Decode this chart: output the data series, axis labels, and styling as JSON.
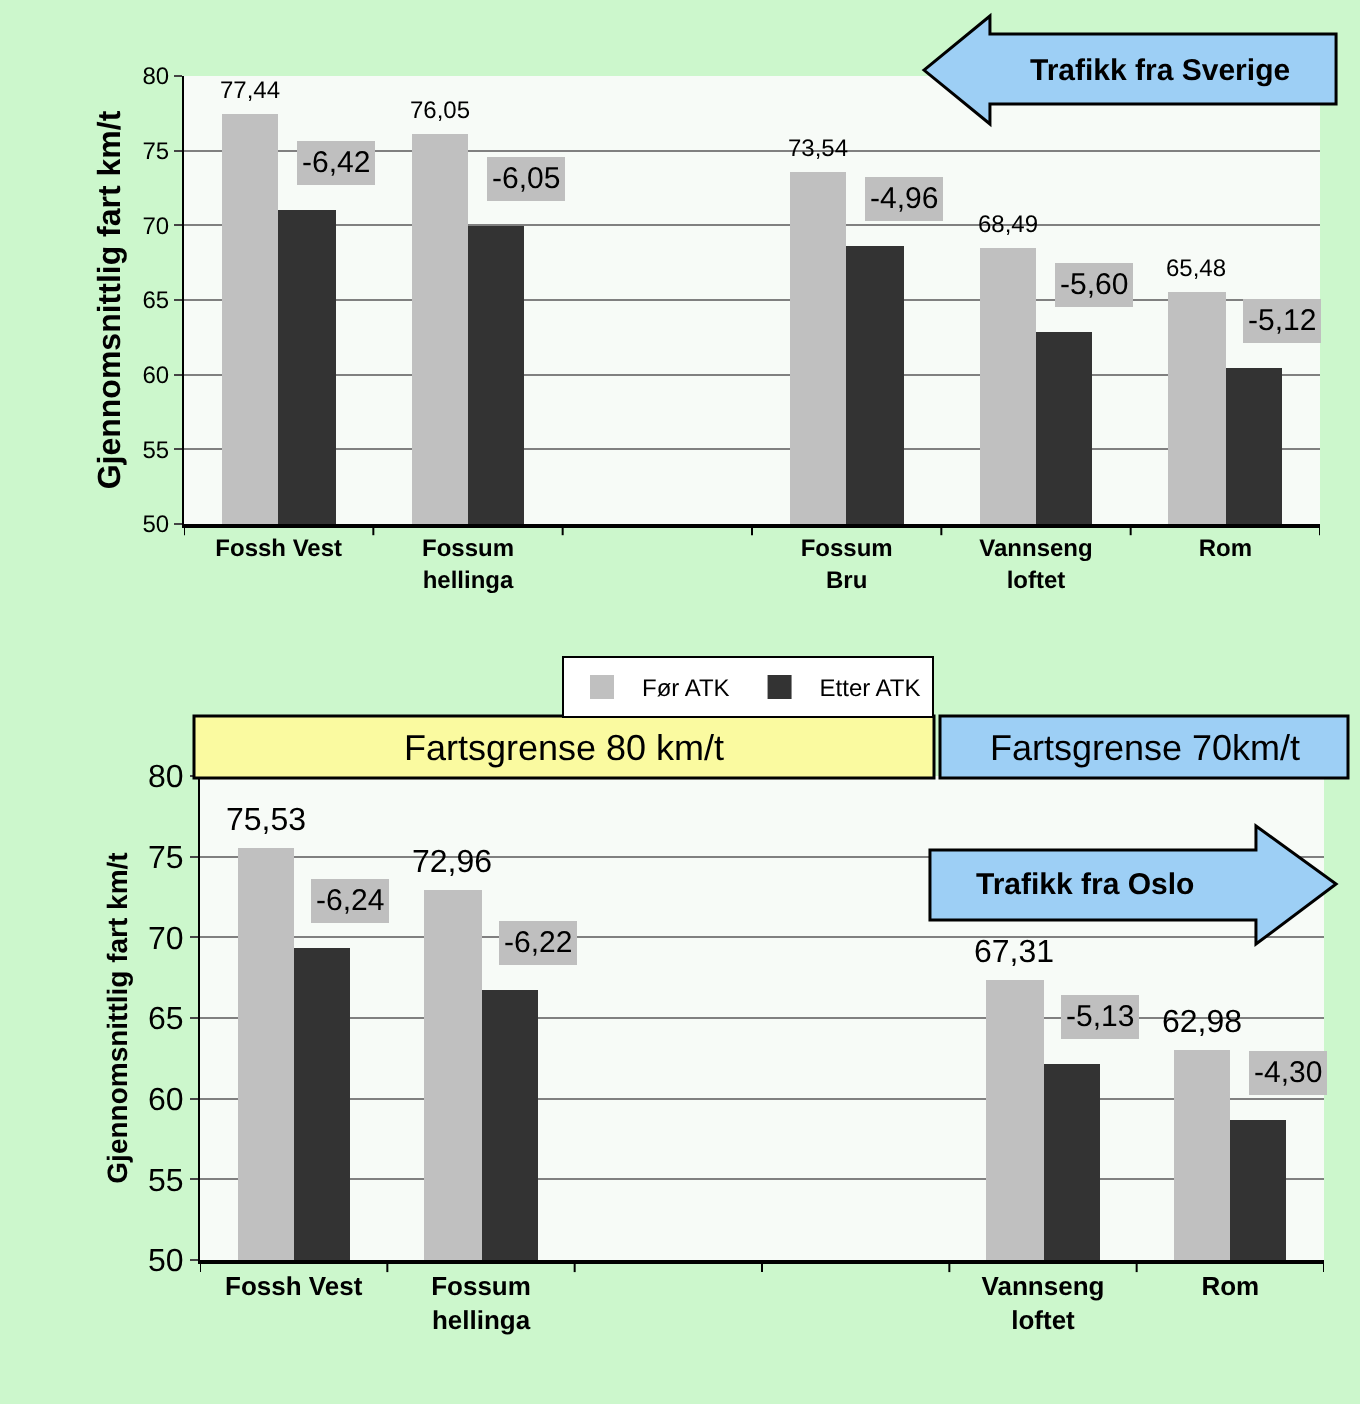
{
  "chart_data": [
    {
      "type": "bar",
      "categories": [
        "Fossh Vest",
        "Fossum\nhellinga",
        null,
        "Fossum\nBru",
        "Vannseng\nloftet",
        "Rom"
      ],
      "ylabel": "Gjennomsnittlig fart km/t",
      "ylim": [
        50,
        80
      ],
      "yticks": [
        50,
        55,
        60,
        65,
        70,
        75,
        80
      ],
      "grid": "y",
      "legend": "bottom",
      "annotations": [
        "Trafikk fra Sverige",
        {
          "text": "-6,42",
          "x": "Fossh Vest",
          "y": 71.0
        },
        {
          "text": "-6,05",
          "x": "Fossum\nhellinga",
          "y": 70.0
        },
        {
          "text": "-4,96",
          "x": "Fossum\nBru",
          "y": 68.6
        },
        {
          "text": "-5,60",
          "x": "Vannseng\nloftet",
          "y": 62.9
        },
        {
          "text": "-5,12",
          "x": "Rom",
          "y": 60.4
        }
      ],
      "series": [
        {
          "name": "Før ATK",
          "color": "#c0c0c0",
          "values": [
            77.44,
            76.05,
            null,
            73.54,
            68.49,
            65.48
          ],
          "value_labels": [
            "77,44",
            "76,05",
            null,
            "73,54",
            "68,49",
            "65,48"
          ]
        },
        {
          "name": "Etter ATK",
          "color": "#333333",
          "values": [
            71.0,
            70.0,
            null,
            68.6,
            62.9,
            60.4
          ]
        }
      ]
    },
    {
      "type": "bar",
      "categories": [
        "Fossh Vest",
        "Fossum\nhellinga",
        null,
        null,
        "Vannseng\nloftet",
        "Rom"
      ],
      "ylabel": "Gjennomsnittlig fart km/t",
      "ylim": [
        50,
        80
      ],
      "yticks": [
        50,
        55,
        60,
        65,
        70,
        75,
        80
      ],
      "grid": "y",
      "legend": "top",
      "annotations": [
        "Fartsgrense 80 km/t",
        "Fartsgrense 70km/t",
        "Trafikk fra Oslo",
        {
          "text": "-6,24",
          "x": "Fossh Vest",
          "y": 69.3
        },
        {
          "text": "-6,22",
          "x": "Fossum\nhellinga",
          "y": 66.7
        },
        {
          "text": "-5,13",
          "x": "Vannseng\nloftet",
          "y": 62.2
        },
        {
          "text": "-4,30",
          "x": "Rom",
          "y": 58.7
        }
      ],
      "series": [
        {
          "name": "Før ATK",
          "color": "#c0c0c0",
          "values": [
            75.53,
            72.96,
            null,
            null,
            67.31,
            62.98
          ],
          "value_labels": [
            "75,53",
            "72,96",
            null,
            null,
            "67,31",
            "62,98"
          ]
        },
        {
          "name": "Etter ATK",
          "color": "#333333",
          "values": [
            69.3,
            66.7,
            null,
            null,
            62.2,
            58.7
          ]
        }
      ]
    }
  ]
}
